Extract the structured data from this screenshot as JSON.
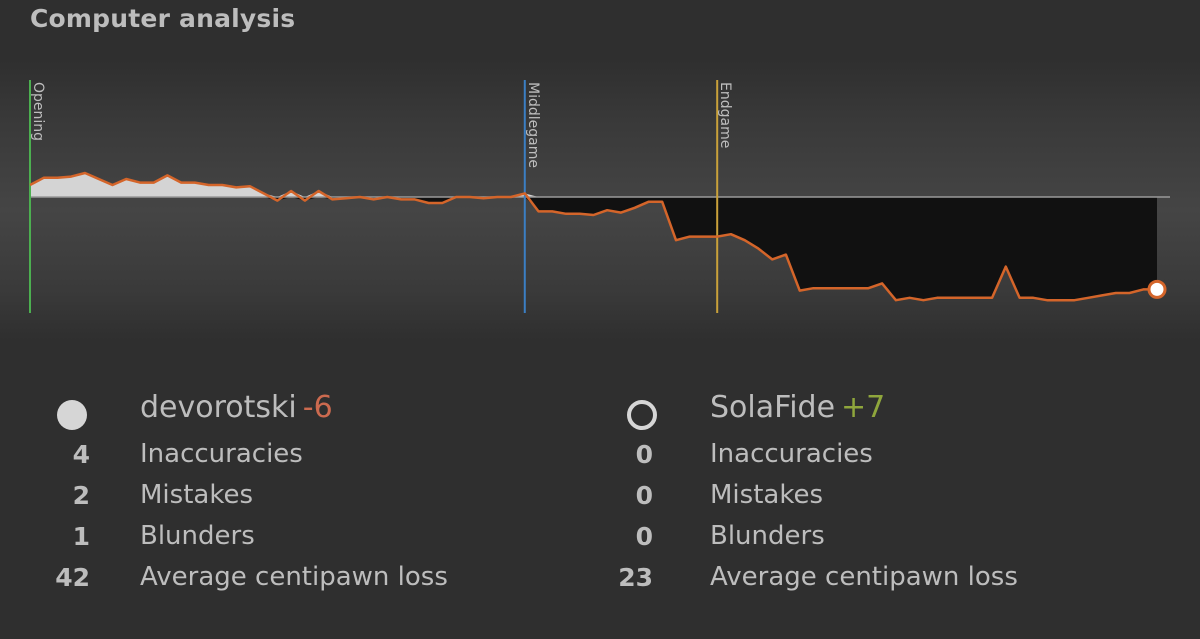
{
  "header": {
    "title": "Computer analysis"
  },
  "phases": {
    "opening": "Opening",
    "middlegame": "Middlegame",
    "endgame": "Endgame"
  },
  "colors": {
    "evalLine": "#d4652a",
    "opening": "#4caf50",
    "middlegame": "#3b7fc4",
    "endgame": "#c9a13a",
    "whiteArea": "#d4d4d4",
    "blackArea": "#111111"
  },
  "chart_data": {
    "type": "area",
    "title": "",
    "xlabel": "",
    "ylabel": "",
    "ylim": [
      -1,
      1
    ],
    "grid": false,
    "phase_markers": [
      {
        "name": "Opening",
        "ply": 0
      },
      {
        "name": "Middlegame",
        "ply": 36
      },
      {
        "name": "Endgame",
        "ply": 50
      }
    ],
    "values": [
      0.1,
      0.16,
      0.16,
      0.17,
      0.2,
      0.15,
      0.1,
      0.15,
      0.12,
      0.12,
      0.18,
      0.12,
      0.12,
      0.1,
      0.1,
      0.08,
      0.09,
      0.03,
      -0.03,
      0.05,
      -0.03,
      0.05,
      -0.02,
      -0.01,
      0.0,
      -0.02,
      0.0,
      -0.02,
      -0.02,
      -0.05,
      -0.05,
      0.0,
      0.0,
      -0.01,
      0.0,
      0.0,
      0.03,
      -0.12,
      -0.12,
      -0.14,
      -0.14,
      -0.15,
      -0.11,
      -0.13,
      -0.09,
      -0.04,
      -0.04,
      -0.36,
      -0.33,
      -0.33,
      -0.33,
      -0.31,
      -0.36,
      -0.43,
      -0.52,
      -0.48,
      -0.78,
      -0.76,
      -0.76,
      -0.76,
      -0.76,
      -0.76,
      -0.72,
      -0.86,
      -0.84,
      -0.86,
      -0.84,
      -0.84,
      -0.84,
      -0.84,
      -0.84,
      -0.58,
      -0.84,
      -0.84,
      -0.86,
      -0.86,
      -0.86,
      -0.84,
      -0.82,
      -0.8,
      -0.8,
      -0.77,
      -0.77
    ]
  },
  "players": [
    {
      "name": "devorotski",
      "rating_diff": "-6",
      "color": "white",
      "stats": [
        {
          "value": "4",
          "label": "Inaccuracies"
        },
        {
          "value": "2",
          "label": "Mistakes"
        },
        {
          "value": "1",
          "label": "Blunders"
        },
        {
          "value": "42",
          "label": "Average centipawn loss"
        }
      ]
    },
    {
      "name": "SolaFide",
      "rating_diff": "+7",
      "color": "black",
      "stats": [
        {
          "value": "0",
          "label": "Inaccuracies"
        },
        {
          "value": "0",
          "label": "Mistakes"
        },
        {
          "value": "0",
          "label": "Blunders"
        },
        {
          "value": "23",
          "label": "Average centipawn loss"
        }
      ]
    }
  ]
}
